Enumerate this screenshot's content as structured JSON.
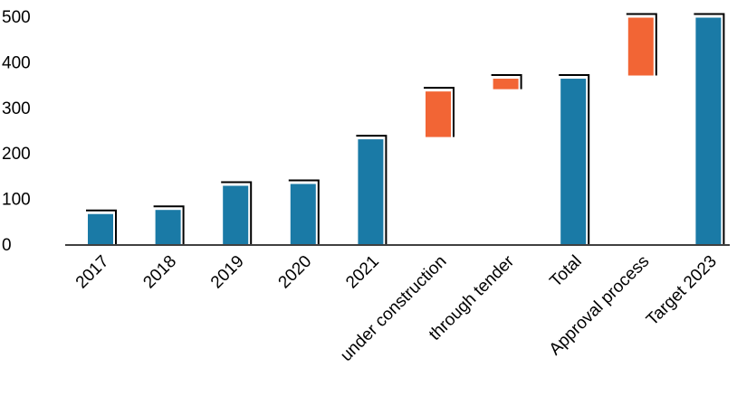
{
  "chart_data": {
    "type": "bar",
    "subtype": "waterfall",
    "title": "",
    "xlabel": "",
    "ylabel": "",
    "ylim": [
      0,
      500
    ],
    "yticks": [
      0,
      100,
      200,
      300,
      400,
      500
    ],
    "grid": false,
    "legend": "none",
    "colors": {
      "total": "#1a7aa6",
      "increment": "#f26535",
      "outline": "#000000"
    },
    "categories": [
      "2017",
      "2018",
      "2019",
      "2020",
      "2021",
      "under construction",
      "through tender",
      "Total",
      "Approval process",
      "Target 2023"
    ],
    "bars": [
      {
        "category": "2017",
        "kind": "total",
        "start": 0,
        "end": 66
      },
      {
        "category": "2018",
        "kind": "total",
        "start": 0,
        "end": 75
      },
      {
        "category": "2019",
        "kind": "total",
        "start": 0,
        "end": 128
      },
      {
        "category": "2020",
        "kind": "total",
        "start": 0,
        "end": 132
      },
      {
        "category": "2021",
        "kind": "total",
        "start": 0,
        "end": 230
      },
      {
        "category": "under construction",
        "kind": "increment",
        "start": 235,
        "end": 335
      },
      {
        "category": "through tender",
        "kind": "increment",
        "start": 340,
        "end": 363
      },
      {
        "category": "Total",
        "kind": "total",
        "start": 0,
        "end": 363
      },
      {
        "category": "Approval process",
        "kind": "increment",
        "start": 370,
        "end": 497
      },
      {
        "category": "Target 2023",
        "kind": "total",
        "start": 0,
        "end": 497
      }
    ]
  }
}
